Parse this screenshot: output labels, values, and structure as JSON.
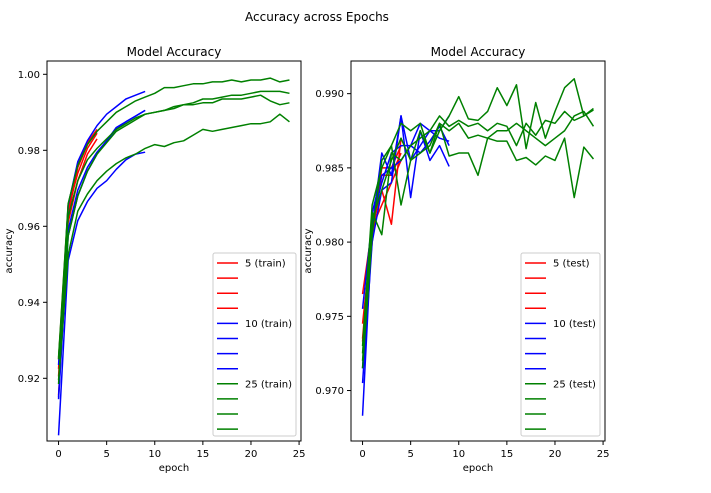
{
  "suptitle": "Accuracy across Epochs",
  "chart_data": [
    {
      "type": "line",
      "title": "Model Accuracy",
      "xlabel": "epoch",
      "ylabel": "accuracy",
      "xlim": [
        -1.2,
        25.2
      ],
      "ylim": [
        0.9035,
        1.0035
      ],
      "xticks": [
        0,
        5,
        10,
        15,
        20,
        25
      ],
      "yticks": [
        0.92,
        0.94,
        0.96,
        0.98,
        1.0
      ],
      "ytick_labels": [
        "0.92",
        "0.94",
        "0.96",
        "0.98",
        "1.00"
      ],
      "legend_position": "lower-right",
      "series": [
        {
          "name": "5 (train)",
          "color": "#ff0000",
          "x": [
            0,
            1,
            2,
            3,
            4
          ],
          "y": [
            0.9155,
            0.961,
            0.972,
            0.979,
            0.983
          ]
        },
        {
          "color": "#ff0000",
          "x": [
            0,
            1,
            2,
            3,
            4
          ],
          "y": [
            0.9225,
            0.9645,
            0.974,
            0.9805,
            0.9845
          ]
        },
        {
          "color": "#ff0000",
          "x": [
            0,
            1,
            2,
            3,
            4
          ],
          "y": [
            0.9205,
            0.963,
            0.9755,
            0.9815,
            0.985
          ]
        },
        {
          "color": "#ff0000",
          "x": [
            0,
            1,
            2,
            3,
            4
          ],
          "y": [
            0.925,
            0.9655,
            0.9765,
            0.982,
            0.9855
          ]
        },
        {
          "name": "10 (train)",
          "color": "#0000ff",
          "x": [
            0,
            1,
            2,
            3,
            4,
            5,
            6,
            7,
            8,
            9
          ],
          "y": [
            0.905,
            0.951,
            0.9615,
            0.9665,
            0.97,
            0.972,
            0.975,
            0.9775,
            0.979,
            0.9795
          ]
        },
        {
          "color": "#0000ff",
          "x": [
            0,
            1,
            2,
            3,
            4,
            5,
            6,
            7,
            8,
            9
          ],
          "y": [
            0.915,
            0.959,
            0.9695,
            0.9755,
            0.9795,
            0.9825,
            0.986,
            0.9875,
            0.989,
            0.9905
          ]
        },
        {
          "color": "#0000ff",
          "x": [
            0,
            1,
            2,
            3,
            4,
            5,
            6,
            7,
            8,
            9
          ],
          "y": [
            0.9145,
            0.9575,
            0.968,
            0.9745,
            0.979,
            0.9825,
            0.9855,
            0.9875,
            0.989,
            0.9905
          ]
        },
        {
          "color": "#0000ff",
          "x": [
            0,
            1,
            2,
            3,
            4,
            5,
            6,
            7,
            8,
            9
          ],
          "y": [
            0.9235,
            0.9655,
            0.977,
            0.9825,
            0.9865,
            0.9895,
            0.9915,
            0.9935,
            0.9945,
            0.9955
          ]
        },
        {
          "name": "25 (train)",
          "color": "#008000",
          "x": [
            0,
            1,
            2,
            3,
            4,
            5,
            6,
            7,
            8,
            9,
            10,
            11,
            12,
            13,
            14,
            15,
            16,
            17,
            18,
            19,
            20,
            21,
            22,
            23,
            24
          ],
          "y": [
            0.9195,
            0.9525,
            0.964,
            0.9685,
            0.972,
            0.9745,
            0.9765,
            0.978,
            0.979,
            0.9805,
            0.9815,
            0.981,
            0.982,
            0.9825,
            0.984,
            0.9855,
            0.985,
            0.9855,
            0.986,
            0.9865,
            0.987,
            0.987,
            0.9875,
            0.9895,
            0.9875
          ]
        },
        {
          "color": "#008000",
          "x": [
            0,
            1,
            2,
            3,
            4,
            5,
            6,
            7,
            8,
            9,
            10,
            11,
            12,
            13,
            14,
            15,
            16,
            17,
            18,
            19,
            20,
            21,
            22,
            23,
            24
          ],
          "y": [
            0.9185,
            0.9575,
            0.968,
            0.9745,
            0.979,
            0.982,
            0.985,
            0.9865,
            0.988,
            0.9895,
            0.99,
            0.9905,
            0.9915,
            0.992,
            0.9925,
            0.9935,
            0.9935,
            0.994,
            0.9945,
            0.9945,
            0.995,
            0.9955,
            0.9955,
            0.9955,
            0.995
          ]
        },
        {
          "color": "#008000",
          "x": [
            0,
            1,
            2,
            3,
            4,
            5,
            6,
            7,
            8,
            9,
            10,
            11,
            12,
            13,
            14,
            15,
            16,
            17,
            18,
            19,
            20,
            21,
            22,
            23,
            24
          ],
          "y": [
            0.925,
            0.9625,
            0.972,
            0.9775,
            0.9805,
            0.983,
            0.9855,
            0.987,
            0.9885,
            0.9895,
            0.99,
            0.9905,
            0.991,
            0.992,
            0.992,
            0.9925,
            0.9925,
            0.9935,
            0.9935,
            0.9935,
            0.994,
            0.9945,
            0.993,
            0.992,
            0.9925
          ]
        },
        {
          "color": "#008000",
          "x": [
            0,
            1,
            2,
            3,
            4,
            5,
            6,
            7,
            8,
            9,
            10,
            11,
            12,
            13,
            14,
            15,
            16,
            17,
            18,
            19,
            20,
            21,
            22,
            23,
            24
          ],
          "y": [
            0.9255,
            0.966,
            0.976,
            0.9815,
            0.985,
            0.9875,
            0.99,
            0.9915,
            0.993,
            0.994,
            0.995,
            0.9965,
            0.9965,
            0.997,
            0.9975,
            0.9975,
            0.998,
            0.998,
            0.9985,
            0.998,
            0.9985,
            0.9985,
            0.999,
            0.998,
            0.9985
          ]
        }
      ],
      "legend_entries": [
        {
          "label": "5 (train)",
          "color": "#ff0000"
        },
        {
          "label": "",
          "color": "#ff0000"
        },
        {
          "label": "",
          "color": "#ff0000"
        },
        {
          "label": "",
          "color": "#ff0000"
        },
        {
          "label": "10 (train)",
          "color": "#0000ff"
        },
        {
          "label": "",
          "color": "#0000ff"
        },
        {
          "label": "",
          "color": "#0000ff"
        },
        {
          "label": "",
          "color": "#0000ff"
        },
        {
          "label": "25 (train)",
          "color": "#008000"
        },
        {
          "label": "",
          "color": "#008000"
        },
        {
          "label": "",
          "color": "#008000"
        },
        {
          "label": "",
          "color": "#008000"
        }
      ]
    },
    {
      "type": "line",
      "title": "Model Accuracy",
      "xlabel": "epoch",
      "ylabel": "accuracy",
      "xlim": [
        -1.2,
        25.2
      ],
      "ylim": [
        0.9666,
        0.9922
      ],
      "xticks": [
        0,
        5,
        10,
        15,
        20,
        25
      ],
      "yticks": [
        0.97,
        0.975,
        0.98,
        0.985,
        0.99
      ],
      "ytick_labels": [
        "0.970",
        "0.975",
        "0.980",
        "0.985",
        "0.990"
      ],
      "legend_position": "lower-right",
      "series": [
        {
          "name": "5 (test)",
          "color": "#ff0000",
          "x": [
            0,
            1,
            2,
            3,
            4
          ],
          "y": [
            0.9735,
            0.981,
            0.9835,
            0.9812,
            0.987
          ]
        },
        {
          "color": "#ff0000",
          "x": [
            0,
            1,
            2,
            3,
            4
          ],
          "y": [
            0.9765,
            0.981,
            0.9825,
            0.984,
            0.9855
          ]
        },
        {
          "color": "#ff0000",
          "x": [
            0,
            1,
            2,
            3,
            4
          ],
          "y": [
            0.9745,
            0.9805,
            0.9845,
            0.9845,
            0.986
          ]
        },
        {
          "color": "#ff0000",
          "x": [
            0,
            1,
            2,
            3,
            4
          ],
          "y": [
            0.9733,
            0.98,
            0.985,
            0.985,
            0.9865
          ]
        },
        {
          "name": "10 (test)",
          "color": "#0000ff",
          "x": [
            0,
            1,
            2,
            3,
            4,
            5,
            6,
            7,
            8,
            9
          ],
          "y": [
            0.9683,
            0.981,
            0.986,
            0.9845,
            0.9885,
            0.983,
            0.9875,
            0.9855,
            0.9865,
            0.9851
          ]
        },
        {
          "color": "#0000ff",
          "x": [
            0,
            1,
            2,
            3,
            4,
            5,
            6,
            7,
            8,
            9
          ],
          "y": [
            0.9705,
            0.98,
            0.9835,
            0.984,
            0.9885,
            0.9855,
            0.9865,
            0.9875,
            0.987,
            0.9868
          ]
        },
        {
          "color": "#0000ff",
          "x": [
            0,
            1,
            2,
            3,
            4,
            5,
            6,
            7,
            8,
            9
          ],
          "y": [
            0.9715,
            0.982,
            0.9845,
            0.985,
            0.9855,
            0.9865,
            0.986,
            0.9868,
            0.9878,
            0.9865
          ]
        },
        {
          "color": "#0000ff",
          "x": [
            0,
            1,
            2,
            3,
            4,
            5,
            6,
            7,
            8,
            9
          ],
          "y": [
            0.9755,
            0.9815,
            0.984,
            0.986,
            0.9865,
            0.9865,
            0.988,
            0.9875,
            0.9875,
            0.9885
          ]
        },
        {
          "name": "25 (test)",
          "color": "#008000",
          "x": [
            0,
            1,
            2,
            3,
            4,
            5,
            6,
            7,
            8,
            9,
            10,
            11,
            12,
            13,
            14,
            15,
            16,
            17,
            18,
            19,
            20,
            21,
            22,
            23,
            24
          ],
          "y": [
            0.9715,
            0.9805,
            0.9855,
            0.9865,
            0.9825,
            0.9855,
            0.986,
            0.9865,
            0.988,
            0.9858,
            0.986,
            0.986,
            0.9845,
            0.987,
            0.9868,
            0.9868,
            0.9855,
            0.9857,
            0.9852,
            0.9858,
            0.9855,
            0.987,
            0.983,
            0.9864,
            0.9856
          ]
        },
        {
          "color": "#008000",
          "x": [
            0,
            1,
            2,
            3,
            4,
            5,
            6,
            7,
            8,
            9,
            10,
            11,
            12,
            13,
            14,
            15,
            16,
            17,
            18,
            19,
            20,
            21,
            22,
            23,
            24
          ],
          "y": [
            0.972,
            0.9815,
            0.9835,
            0.9855,
            0.987,
            0.9855,
            0.9875,
            0.986,
            0.988,
            0.9875,
            0.988,
            0.987,
            0.9872,
            0.987,
            0.9875,
            0.9875,
            0.988,
            0.9875,
            0.987,
            0.9865,
            0.987,
            0.9875,
            0.9885,
            0.9888,
            0.9878
          ]
        },
        {
          "color": "#008000",
          "x": [
            0,
            1,
            2,
            3,
            4,
            5,
            6,
            7,
            8,
            9,
            10,
            11,
            12,
            13,
            14,
            15,
            16,
            17,
            18,
            19,
            20,
            21,
            22,
            23,
            24
          ],
          "y": [
            0.9725,
            0.982,
            0.9805,
            0.986,
            0.9855,
            0.9865,
            0.987,
            0.9875,
            0.9885,
            0.9878,
            0.9882,
            0.9878,
            0.988,
            0.9875,
            0.988,
            0.9878,
            0.9865,
            0.988,
            0.9872,
            0.9882,
            0.988,
            0.9888,
            0.9882,
            0.9885,
            0.989
          ]
        },
        {
          "color": "#008000",
          "x": [
            0,
            1,
            2,
            3,
            4,
            5,
            6,
            7,
            8,
            9,
            10,
            11,
            12,
            13,
            14,
            15,
            16,
            17,
            18,
            19,
            20,
            21,
            22,
            23,
            24
          ],
          "y": [
            0.973,
            0.9825,
            0.985,
            0.9865,
            0.988,
            0.9875,
            0.988,
            0.986,
            0.9875,
            0.9885,
            0.9898,
            0.9883,
            0.9882,
            0.9888,
            0.9904,
            0.9892,
            0.9906,
            0.9863,
            0.9894,
            0.987,
            0.9888,
            0.9904,
            0.991,
            0.9885,
            0.9889
          ]
        }
      ],
      "legend_entries": [
        {
          "label": "5 (test)",
          "color": "#ff0000"
        },
        {
          "label": "",
          "color": "#ff0000"
        },
        {
          "label": "",
          "color": "#ff0000"
        },
        {
          "label": "",
          "color": "#ff0000"
        },
        {
          "label": "10 (test)",
          "color": "#0000ff"
        },
        {
          "label": "",
          "color": "#0000ff"
        },
        {
          "label": "",
          "color": "#0000ff"
        },
        {
          "label": "",
          "color": "#0000ff"
        },
        {
          "label": "25 (test)",
          "color": "#008000"
        },
        {
          "label": "",
          "color": "#008000"
        },
        {
          "label": "",
          "color": "#008000"
        },
        {
          "label": "",
          "color": "#008000"
        }
      ]
    }
  ]
}
